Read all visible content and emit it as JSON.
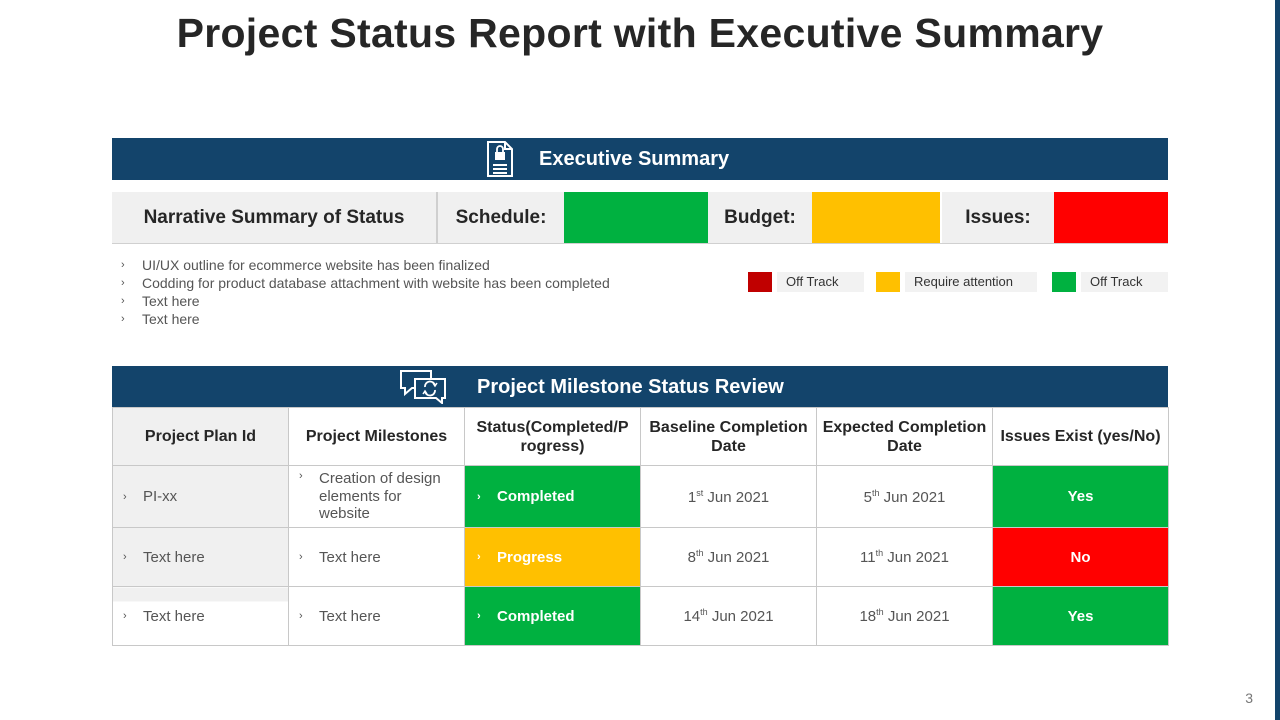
{
  "title": "Project Status Report with Executive Summary",
  "colors": {
    "band": "#13446b",
    "green": "#00b140",
    "yellow": "#ffc000",
    "red": "#ff0000",
    "dark_red": "#c00000"
  },
  "executive_summary": {
    "heading": "Executive Summary",
    "icon": "document-lock-icon",
    "narrative_label": "Narrative Summary of Status",
    "schedule_label": "Schedule:",
    "schedule_status": "green",
    "budget_label": "Budget:",
    "budget_status": "yellow",
    "issues_label": "Issues:",
    "issues_status": "red",
    "bullets": [
      "UI/UX  outline for ecommerce website has been finalized",
      "Codding for product database attachment with website has been completed",
      "Text here",
      "Text here"
    ],
    "legend": [
      {
        "label": "Off Track",
        "color": "#c00000"
      },
      {
        "label": "Require  attention",
        "color": "#ffc000"
      },
      {
        "label": "Off Track",
        "color": "#00b140"
      }
    ]
  },
  "milestones": {
    "heading": "Project Milestone  Status Review",
    "icon": "chat-refresh-icon",
    "headers": [
      "Project Plan Id",
      "Project Milestones",
      "Status(Completed/P rogress)",
      "Baseline Completion Date",
      "Expected Completion Date",
      "Issues Exist (yes/No)"
    ],
    "rows": [
      {
        "plan_id": "PI-xx",
        "milestone": "Creation of design elements for website",
        "status": "Completed",
        "status_color": "#00b140",
        "baseline_day": "1",
        "baseline_suffix": "st",
        "baseline_rest": " Jun 2021",
        "expected_day": "5",
        "expected_suffix": "th",
        "expected_rest": " Jun 2021",
        "issues": "Yes",
        "issues_color": "#00b140"
      },
      {
        "plan_id": "Text here",
        "milestone": "Text here",
        "status": "Progress",
        "status_color": "#ffc000",
        "baseline_day": "8",
        "baseline_suffix": "th",
        "baseline_rest": " Jun 2021",
        "expected_day": "11",
        "expected_suffix": "th",
        "expected_rest": " Jun 2021",
        "issues": "No",
        "issues_color": "#ff0000"
      },
      {
        "plan_id": "Text here",
        "milestone": "Text here",
        "status": "Completed",
        "status_color": "#00b140",
        "baseline_day": "14",
        "baseline_suffix": "th",
        "baseline_rest": " Jun 2021",
        "expected_day": "18",
        "expected_suffix": "th",
        "expected_rest": " Jun 2021",
        "issues": "Yes",
        "issues_color": "#00b140"
      }
    ]
  },
  "page_number": "3"
}
